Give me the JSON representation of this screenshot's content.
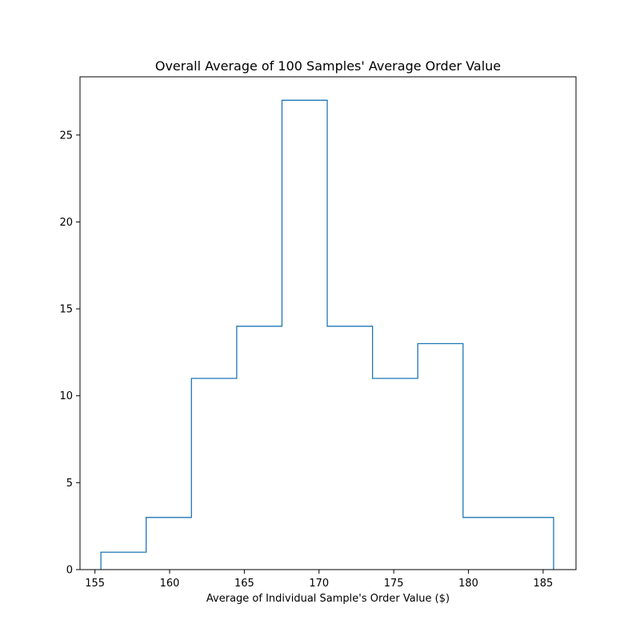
{
  "chart_data": {
    "type": "histogram",
    "title": "Overall Average of 100 Samples' Average Order Value",
    "xlabel": "Average of Individual Sample's Order Value ($)",
    "ylabel": "",
    "histtype": "step",
    "bin_edges": [
      155.4,
      158.43,
      161.46,
      164.49,
      167.52,
      170.55,
      173.58,
      176.61,
      179.64,
      182.67,
      185.7
    ],
    "counts": [
      1,
      3,
      11,
      14,
      27,
      14,
      11,
      13,
      3,
      3
    ],
    "xlim": [
      154.0,
      187.2
    ],
    "ylim": [
      0,
      28.35
    ],
    "xticks": [
      155,
      160,
      165,
      170,
      175,
      180,
      185
    ],
    "yticks": [
      0,
      5,
      10,
      15,
      20,
      25
    ],
    "grid": false,
    "colors": {
      "series": "#1f77b4",
      "axes": "#000000",
      "background": "#ffffff"
    }
  }
}
